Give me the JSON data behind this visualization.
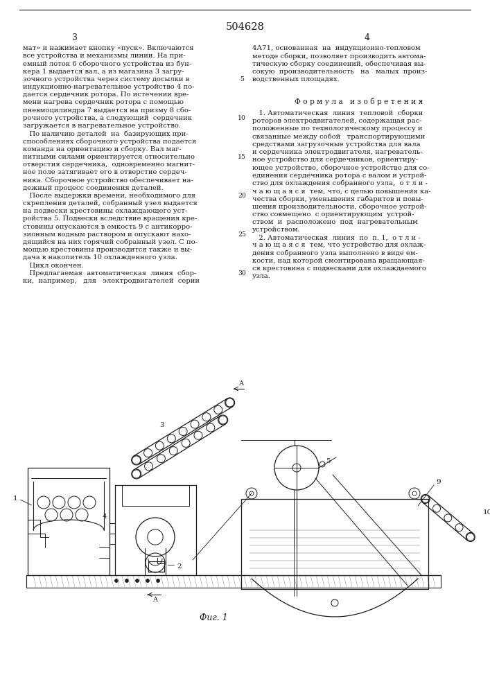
{
  "patent_number": "504628",
  "page_left": "3",
  "page_right": "4",
  "bg_color": "#ffffff",
  "text_color": "#1a1a1a",
  "font_size_body": 7.2,
  "font_size_small": 6.5,
  "font_size_page_num": 9.0,
  "font_size_patent": 10.5,
  "left_col_lines": [
    "мат» и нажимает кнопку «пуск». Включаются",
    "все устройства и механизмы линии. На при-",
    "емный лоток 6 сборочного устройства из бун-",
    "кера 1 выдается вал, а из магазина 3 загру-",
    "зочного устройства через систему досылки в",
    "индукционно-нагревательное устройство 4 по-",
    "дается сердечник ротора. По истечении вре-",
    "мени нагрева сердечник ротора с помощью",
    "пневмоцилиндра 7 выдается на призму 8 сбо-",
    "рочного устройства, а следующий  сердечник",
    "загружается в нагревательное устройство.",
    "   По наличию деталей  на  базирующих при-",
    "способлениях сборочного устройства подается",
    "команда на ориентацию и сборку. Вал маг-",
    "нитными силами ориентируется относительно",
    "отверстия сердечника,  одновременно магнит-",
    "ное поле затягивает его в отверстие сердеч-",
    "ника. Сборочное устройство обеспечивает на-",
    "дежный процесс соединения деталей.",
    "   После выдержки времени, необходимого для",
    "скрепления деталей, собранный узел выдается",
    "на подвески крестовины охлаждающего уст-",
    "ройства 5. Подвески вследствие вращения кре-",
    "стовины опускаются в емкость 9 с антикорро-",
    "зионным водным раствором и опускают нахо-",
    "дящийся на них горячий собранный узел. С по-",
    "мощью крестовины производится также и вы-",
    "дача в накопитель 10 охлажденного узла.",
    "   Цикл окончен.",
    "   Предлагаемая  автоматическая  линия  сбор-",
    "ки,  например,   для   электродвигателей  серии"
  ],
  "right_col_top_lines": [
    "4А71, основанная  на  индукционно-тепловом",
    "методе сборки, позволяет производить автома-",
    "тическую сборку соединений, обеспечивая вы-",
    "сокую  производительность   на   малых  произ-",
    "водственных площадях."
  ],
  "line_numbers": {
    "4": "5",
    "9": "10",
    "14": "15",
    "19": "20",
    "24": "25",
    "29": "30"
  },
  "formula_title": "Ф о р м у л а   и з о б р е т е н и я",
  "formula_lines": [
    "   1. Автоматическая  линия  тепловой  сборки",
    "роторов электродвигателей, содержащая рас-",
    "положенные по технологическому процессу и",
    "связанные между собой   транспортирующими",
    "средствами загрузочные устройства для вала",
    "и сердечника электродвигателя, нагреватель-",
    "ное устройство для сердечников, ориентиру-",
    "ющее устройство, сборочное устройство для со-",
    "единения сердечника ротора с валом и устрой-",
    "ство для охлаждения собранного узла,  о т л и -",
    "ч а ю щ а я с я  тем, что, с целью повышения ка-",
    "чества сборки, уменьшения габаритов и повы-",
    "шения производительности, сборочное устрой-",
    "ство совмещено  с ориентирующим  устрой-",
    "ством  и  расположено  под  нагревательным",
    "устройством.",
    "   2. Автоматическая  линия  по  п. 1,  о т л и -",
    "ч а ю щ а я с я  тем, что устройство для охлаж-",
    "дения собранного узла выполнено в виде ем-",
    "кости, над которой смонтирована вращающая-",
    "ся крестовина с подвесками для охлаждаемого",
    "узла."
  ],
  "fig_caption": "Фиг. 1"
}
